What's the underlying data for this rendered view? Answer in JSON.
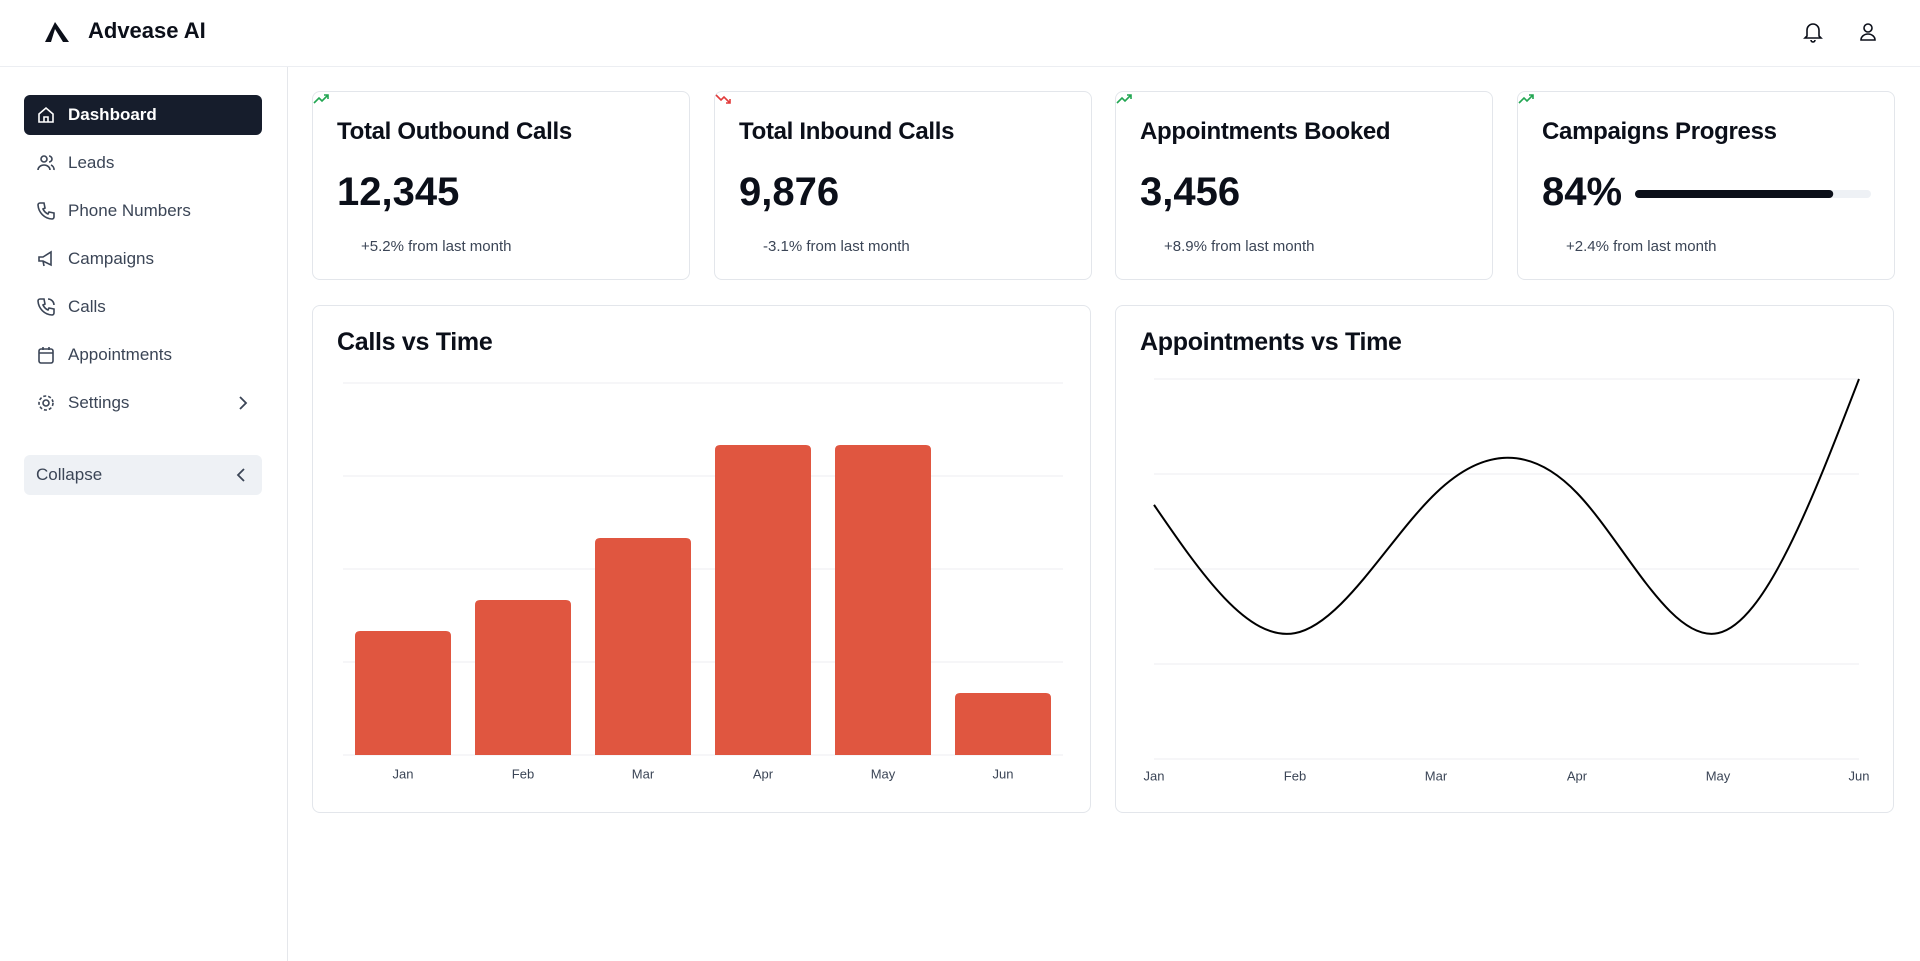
{
  "header": {
    "title": "Advease AI"
  },
  "sidebar": {
    "items": [
      "Dashboard",
      "Leads",
      "Phone Numbers",
      "Campaigns",
      "Calls",
      "Appointments",
      "Settings"
    ],
    "collapse": "Collapse"
  },
  "stats": [
    {
      "title": "Total Outbound Calls",
      "value": "12,345",
      "change": "+5.2% from last month"
    },
    {
      "title": "Total Inbound Calls",
      "value": "9,876",
      "change": "-3.1% from last month"
    },
    {
      "title": "Appointments Booked",
      "value": "3,456",
      "change": "+8.9% from last month"
    },
    {
      "title": "Campaigns Progress",
      "value": "84%",
      "change": "+2.4% from last month",
      "progress": 84
    }
  ],
  "chart_data": [
    {
      "type": "bar",
      "title": "Calls vs Time",
      "categories": [
        "Jan",
        "Feb",
        "Mar",
        "Apr",
        "May",
        "Jun"
      ],
      "values": [
        4,
        5,
        7,
        10,
        10,
        2
      ],
      "color": "#e05640",
      "ylim": [
        0,
        12
      ],
      "yticks": [
        0,
        3,
        6,
        9,
        12
      ],
      "grid": true
    },
    {
      "type": "line",
      "title": "Appointments vs Time",
      "categories": [
        "Jan",
        "Feb",
        "Mar",
        "Apr",
        "May",
        "Jun"
      ],
      "values": [
        5.35,
        2.65,
        5.6,
        5.6,
        2.65,
        8
      ],
      "color": "#000000",
      "ylim": [
        0,
        8
      ],
      "yticks": [
        0,
        2,
        4,
        6,
        8
      ],
      "grid": true
    }
  ]
}
